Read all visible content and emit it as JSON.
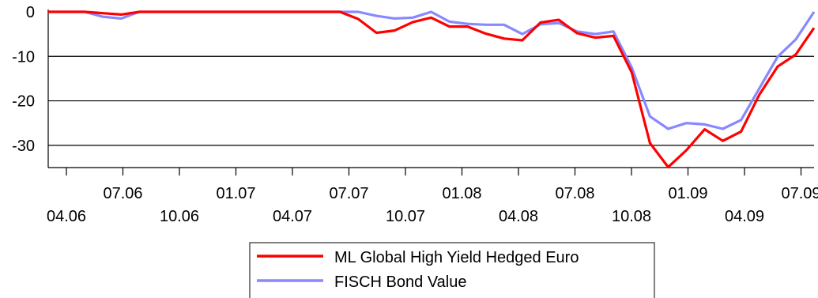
{
  "chart_data": {
    "type": "line",
    "title": "",
    "xlabel": "",
    "ylabel": "",
    "ylim": [
      -35,
      0
    ],
    "yticks": [
      0,
      -10,
      -20,
      -30
    ],
    "grid": "horizontal",
    "legend_position": "bottom-center",
    "x_tick_labels_upper": [
      "07.06",
      "01.07",
      "07.07",
      "01.08",
      "07.08",
      "01.09",
      "07.09"
    ],
    "x_tick_labels_lower": [
      "04.06",
      "10.06",
      "04.07",
      "10.07",
      "04.08",
      "10.08",
      "04.09"
    ],
    "series": [
      {
        "name": "ML Global High Yield Hedged Euro",
        "color": "#ff0000",
        "values": [
          0,
          0,
          0,
          -0.3,
          -0.6,
          0,
          0,
          0,
          0,
          0,
          0,
          0,
          0,
          0,
          0,
          0,
          0,
          -1.6,
          -4.7,
          -4.2,
          -2.3,
          -1.3,
          -3.3,
          -3.3,
          -4.9,
          -6.0,
          -6.4,
          -2.4,
          -1.8,
          -4.8,
          -5.8,
          -5.4,
          -13.6,
          -29.5,
          -34.9,
          -31.1,
          -26.4,
          -29.0,
          -26.9,
          -18.6,
          -12.3,
          -9.6,
          -3.6
        ]
      },
      {
        "name": "FISCH Bond Value",
        "color": "#8888ff",
        "values": [
          0,
          0,
          0,
          -1.1,
          -1.5,
          0,
          0,
          0,
          0,
          0,
          0,
          0,
          0,
          0,
          0,
          0,
          0,
          0,
          -0.9,
          -1.5,
          -1.3,
          0,
          -2.2,
          -2.7,
          -2.9,
          -2.9,
          -5.0,
          -2.8,
          -2.5,
          -4.4,
          -5.0,
          -4.4,
          -12.5,
          -23.5,
          -26.3,
          -25.0,
          -25.3,
          -26.3,
          -24.3,
          -17.2,
          -10.1,
          -6.2,
          0
        ]
      }
    ]
  }
}
